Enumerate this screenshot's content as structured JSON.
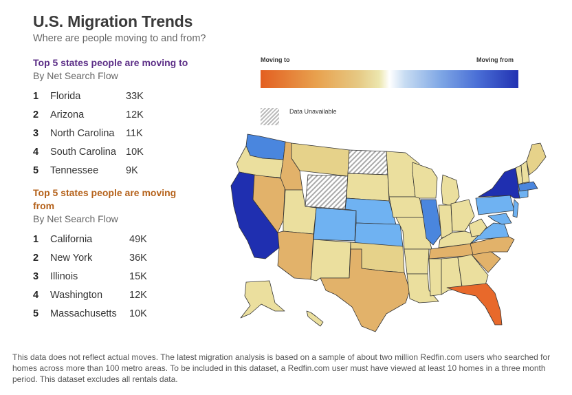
{
  "header": {
    "title": "U.S. Migration Trends",
    "subtitle": "Where are people moving to and from?"
  },
  "moving_to": {
    "heading": "Top 5 states people are moving to",
    "subheading": "By Net Search Flow",
    "color": "#5b2d86",
    "items": [
      {
        "rank": "1",
        "state": "Florida",
        "value": "33K"
      },
      {
        "rank": "2",
        "state": "Arizona",
        "value": "12K"
      },
      {
        "rank": "3",
        "state": "North Carolina",
        "value": "11K"
      },
      {
        "rank": "4",
        "state": "South Carolina",
        "value": "10K"
      },
      {
        "rank": "5",
        "state": "Tennessee",
        "value": "9K"
      }
    ]
  },
  "moving_from": {
    "heading": "Top 5 states people are moving from",
    "subheading": "By Net Search Flow",
    "color": "#b5621b",
    "items": [
      {
        "rank": "1",
        "state": "California",
        "value": "49K"
      },
      {
        "rank": "2",
        "state": "New York",
        "value": "36K"
      },
      {
        "rank": "3",
        "state": "Illinois",
        "value": "15K"
      },
      {
        "rank": "4",
        "state": "Washington",
        "value": "12K"
      },
      {
        "rank": "5",
        "state": "Massachusetts",
        "value": "10K"
      }
    ]
  },
  "legend": {
    "left_label": "Moving to",
    "right_label": "Moving from",
    "unavailable_label": "Data Unavailable",
    "colors": [
      "#e35f21",
      "#e8a24f",
      "#e6c984",
      "#ece6ae",
      "#ffffff",
      "#7ea6e5",
      "#2232b2"
    ]
  },
  "map": {
    "colors": {
      "strong_to": "#e8692b",
      "to": "#e2b26a",
      "mild_to": "#e6d28a",
      "neutral": "#ebdf9e",
      "mild_from": "#6fb2f2",
      "from": "#4a86de",
      "strong_from": "#1f2fb0",
      "unavailable": "#bbbbbb"
    }
  },
  "footer": {
    "text": "This data does not reflect actual moves. The latest migration analysis is based on a sample of about two million Redfin.com users who searched for homes across more than 100 metro areas. To be included in this dataset, a Redfin.com user must have viewed at least 10 homes in a three month period. This dataset excludes all rentals data."
  }
}
